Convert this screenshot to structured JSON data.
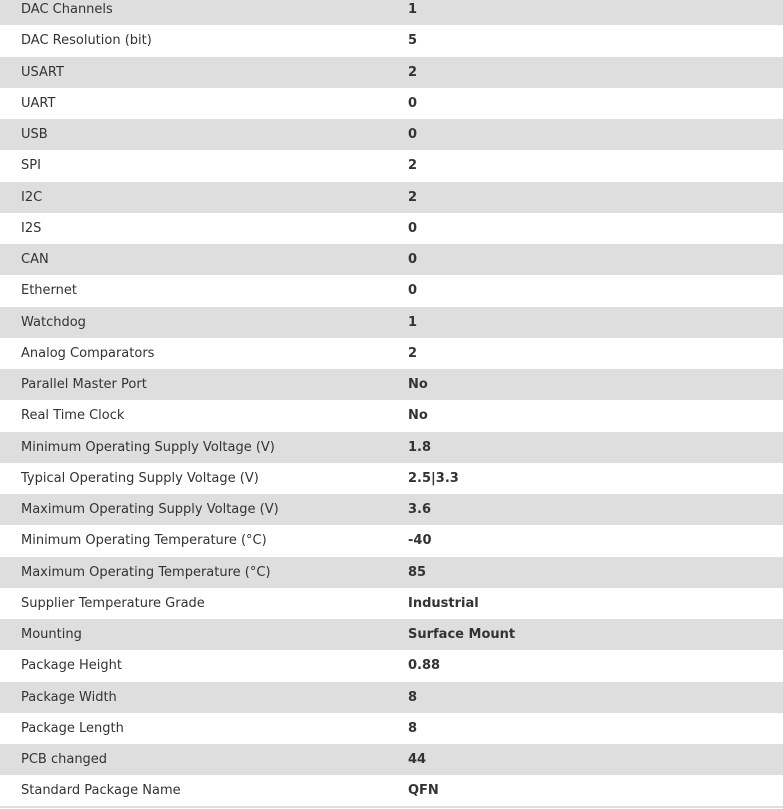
{
  "specs": [
    {
      "label": "DAC Channels",
      "value": "1"
    },
    {
      "label": "DAC Resolution (bit)",
      "value": "5"
    },
    {
      "label": "USART",
      "value": "2"
    },
    {
      "label": "UART",
      "value": "0"
    },
    {
      "label": "USB",
      "value": "0"
    },
    {
      "label": "SPI",
      "value": "2"
    },
    {
      "label": "I2C",
      "value": "2"
    },
    {
      "label": "I2S",
      "value": "0"
    },
    {
      "label": "CAN",
      "value": "0"
    },
    {
      "label": "Ethernet",
      "value": "0"
    },
    {
      "label": "Watchdog",
      "value": "1"
    },
    {
      "label": "Analog Comparators",
      "value": "2"
    },
    {
      "label": "Parallel Master Port",
      "value": "No"
    },
    {
      "label": "Real Time Clock",
      "value": "No"
    },
    {
      "label": "Minimum Operating Supply Voltage (V)",
      "value": "1.8"
    },
    {
      "label": "Typical Operating Supply Voltage (V)",
      "value": "2.5|3.3"
    },
    {
      "label": "Maximum Operating Supply Voltage (V)",
      "value": "3.6"
    },
    {
      "label": "Minimum Operating Temperature (°C)",
      "value": "-40"
    },
    {
      "label": "Maximum Operating Temperature (°C)",
      "value": "85"
    },
    {
      "label": "Supplier Temperature Grade",
      "value": "Industrial"
    },
    {
      "label": "Mounting",
      "value": "Surface Mount"
    },
    {
      "label": "Package Height",
      "value": "0.88"
    },
    {
      "label": "Package Width",
      "value": "8"
    },
    {
      "label": "Package Length",
      "value": "8"
    },
    {
      "label": "PCB changed",
      "value": "44"
    },
    {
      "label": "Standard Package Name",
      "value": "QFN"
    }
  ]
}
